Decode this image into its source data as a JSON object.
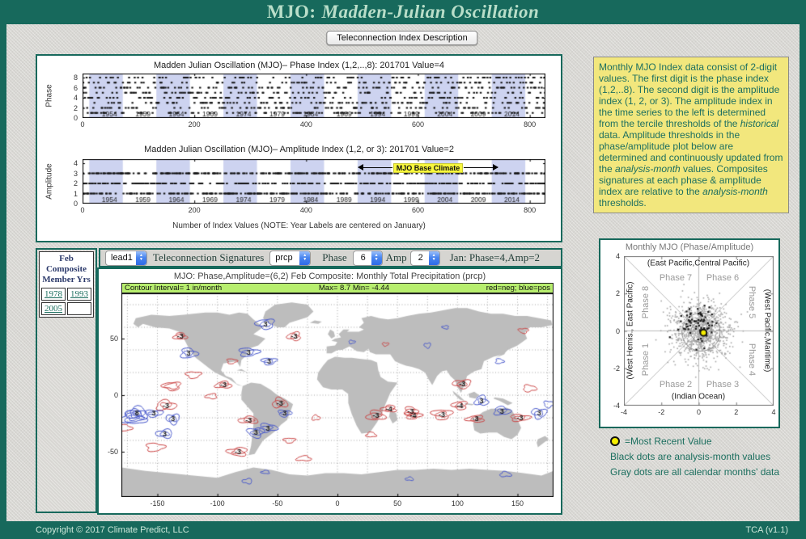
{
  "banner": {
    "title_head": "MJO:",
    "title_rest": "Madden-Julian Oscillation"
  },
  "description_button": "Teleconnection Index Description",
  "colors": {
    "accent_teal": "#17695c",
    "banner_text": "#b9dec9",
    "page_bg": "#d8d7d3",
    "band": "#cdd3f0",
    "info_box_bg": "#f2e77d",
    "info_text": "#1d6f60",
    "link": "#1c6f5f",
    "member_title": "#2c3a6b",
    "highlight_yellow": "#f8f73c",
    "contour_bar": "#b7ee6e",
    "neg_red": "#cc4444",
    "pos_blue": "#4455cc",
    "land_gray": "#bdbdbd",
    "marker_yellow": "#f6ee00"
  },
  "info_box": {
    "segments": [
      {
        "t": "Monthly MJO Index data consist of 2-digit values. The first digit is the phase index (1,2,..8). The second digit is the amplitude index (1, 2, or 3). The amplitude index in the time series to the left is determined from the tercile thresholds of the "
      },
      {
        "t": "historical",
        "i": 1
      },
      {
        "t": " data.  Amplitude thresholds in the phase/amplitude plot below are determined and continuously updated from the "
      },
      {
        "t": "analysis-month",
        "i": 1
      },
      {
        "t": " values. Composites signatures at each phase & amplitude index are relative to the "
      },
      {
        "t": "analysis-month",
        "i": 1
      },
      {
        "t": " thresholds."
      }
    ]
  },
  "member_years_panel": {
    "title_lines": [
      "Feb",
      "Composite",
      "Member Yrs"
    ],
    "years": [
      "1978",
      "1993",
      "2005",
      ""
    ]
  },
  "controls": {
    "lead_select": "lead1",
    "signature_label": "Teleconnection Signatures",
    "signature_select": "prcp",
    "phase_label": "Phase",
    "phase_select": "6",
    "amp_label": "Amp",
    "amp_select": "2",
    "status": "Jan: Phase=4,Amp=2"
  },
  "legend": {
    "most_recent": "=Most  Recent Value",
    "black_dots": "Black dots are analysis-month values",
    "gray_dots": "Gray dots are all calendar months' data"
  },
  "footer": {
    "copyright": "Copyright © 2017 Climate Predict, LLC",
    "version": "TCA (v1.1)"
  },
  "chart_data": [
    {
      "type": "scatter",
      "id": "phase-index-strip",
      "title": "Madden Julian Oscillation (MJO)– Phase Index (1,2,..,8): 201701 Value=4",
      "ylabel": "Phase",
      "xlim": [
        0,
        828
      ],
      "ylim": [
        0,
        8.8
      ],
      "xticks": [
        0,
        200,
        400,
        600,
        800
      ],
      "yticks": [
        0,
        2,
        4,
        6,
        8
      ],
      "n_values": 828,
      "levels": 8,
      "latest_value": 4,
      "values_desc": "monthly phase index 1-8, 828 monthly values ending 201701=4 (dense random-looking strip rows)",
      "year_labels": [
        "1954",
        "1959",
        "1964",
        "1969",
        "1974",
        "1979",
        "1984",
        "1989",
        "1994",
        "1999",
        "2004",
        "2009",
        "2014"
      ],
      "bands": {
        "start": 12,
        "period": 120,
        "width": 60
      }
    },
    {
      "type": "scatter",
      "id": "amplitude-index-strip",
      "title": "Madden Julian Oscillation (MJO)– Amplitude Index (1,2, or 3): 201701 Value=2",
      "ylabel": "Amplitude",
      "xlabel": "Number of Index Values (NOTE: Year Labels are centered on January)",
      "xlim": [
        0,
        828
      ],
      "ylim": [
        0,
        4.4
      ],
      "xticks": [
        0,
        200,
        400,
        600,
        800
      ],
      "yticks": [
        0,
        1,
        2,
        3,
        4
      ],
      "n_values": 828,
      "levels": 3,
      "latest_value": 2,
      "values_desc": "monthly amplitude index 1-3, 828 monthly values ending 201701=2",
      "year_labels": [
        "1954",
        "1959",
        "1964",
        "1969",
        "1974",
        "1979",
        "1984",
        "1989",
        "1994",
        "1999",
        "2004",
        "2009",
        "2014"
      ],
      "bands": {
        "start": 12,
        "period": 120,
        "width": 60
      },
      "annotation": {
        "label": "MJO Base Climate",
        "x_span": [
          495,
          740
        ],
        "y": 3.6
      }
    },
    {
      "type": "map_contour",
      "title": "MJO: Phase,Amplitude=(6,2) Feb Composite: Monthly Total Precipitation (prcp)",
      "info_bar": {
        "left": "Contour Interval= 1 in/month",
        "center": "Max= 8.7  Min= -4.44",
        "right": "red=neg; blue=pos"
      },
      "xticks": [
        -150,
        -100,
        -50,
        0,
        50,
        100,
        150
      ],
      "yticks": [
        50,
        0,
        -50
      ],
      "lon_range": [
        -180,
        180
      ],
      "lat_range": [
        -90,
        90
      ],
      "contour_labels": [
        {
          "lon": -131,
          "lat": 52,
          "v": "-3"
        },
        {
          "lon": -124,
          "lat": 37,
          "v": "3"
        },
        {
          "lon": -74,
          "lat": 38,
          "v": "3"
        },
        {
          "lon": -57,
          "lat": 30,
          "v": "3"
        },
        {
          "lon": -60,
          "lat": 63,
          "v": "3"
        },
        {
          "lon": -36,
          "lat": 52,
          "v": "-3"
        },
        {
          "lon": -95,
          "lat": 9,
          "v": "-3"
        },
        {
          "lon": -143,
          "lat": -9,
          "v": "-3"
        },
        {
          "lon": -167,
          "lat": -16,
          "v": "8"
        },
        {
          "lon": -153,
          "lat": -16,
          "v": "3"
        },
        {
          "lon": -137,
          "lat": -21,
          "v": "3"
        },
        {
          "lon": -144,
          "lat": -34,
          "v": "3"
        },
        {
          "lon": -74,
          "lat": -22,
          "v": "-3"
        },
        {
          "lon": -48,
          "lat": -7,
          "v": "-3"
        },
        {
          "lon": -58,
          "lat": -29,
          "v": "3"
        },
        {
          "lon": -44,
          "lat": -16,
          "v": "3"
        },
        {
          "lon": -68,
          "lat": -33,
          "v": "3"
        },
        {
          "lon": -83,
          "lat": -50,
          "v": "-3"
        },
        {
          "lon": 43,
          "lat": -12,
          "v": "-4"
        },
        {
          "lon": 32,
          "lat": -18,
          "v": "-3"
        },
        {
          "lon": 61,
          "lat": -14,
          "v": "-3"
        },
        {
          "lon": 63,
          "lat": -18,
          "v": "-4"
        },
        {
          "lon": 87,
          "lat": -17,
          "v": "-3"
        },
        {
          "lon": 102,
          "lat": -9,
          "v": "-4"
        },
        {
          "lon": 115,
          "lat": -21,
          "v": "-3"
        },
        {
          "lon": 120,
          "lat": -5,
          "v": "3"
        },
        {
          "lon": 137,
          "lat": -14,
          "v": "3"
        },
        {
          "lon": 152,
          "lat": -20,
          "v": "-3"
        },
        {
          "lon": 168,
          "lat": -16,
          "v": "3"
        },
        {
          "lon": 104,
          "lat": 10,
          "v": "-3"
        }
      ]
    },
    {
      "type": "scatter",
      "title": "Monthly MJO (Phase/Amplitude)",
      "xlim": [
        -4,
        4
      ],
      "ylim": [
        -4,
        4
      ],
      "xticks": [
        -4,
        -2,
        0,
        2,
        4
      ],
      "yticks": [
        -4,
        -2,
        0,
        2,
        4
      ],
      "region_labels": {
        "top": "(East Pacific,Central Pacific)",
        "bottom": "(Indian Ocean)",
        "left": "(West Hemis., East Pacific)",
        "right": "(West Pacific,Maritime)"
      },
      "phase_labels": [
        "Phase 1",
        "Phase 2",
        "Phase 3",
        "Phase 4",
        "Phase 5",
        "Phase 6",
        "Phase 7",
        "Phase 8"
      ],
      "threshold_circles": [
        0.55,
        1.02
      ],
      "circle_center": [
        0.12,
        -0.06
      ],
      "most_recent_value": [
        0.25,
        -0.1
      ],
      "gray_points": {
        "n": 850,
        "center": [
          0.1,
          0
        ],
        "sigma": 0.78
      },
      "black_points": {
        "n": 70,
        "center": [
          -0.15,
          0.45
        ],
        "sigma": 0.5
      }
    }
  ]
}
